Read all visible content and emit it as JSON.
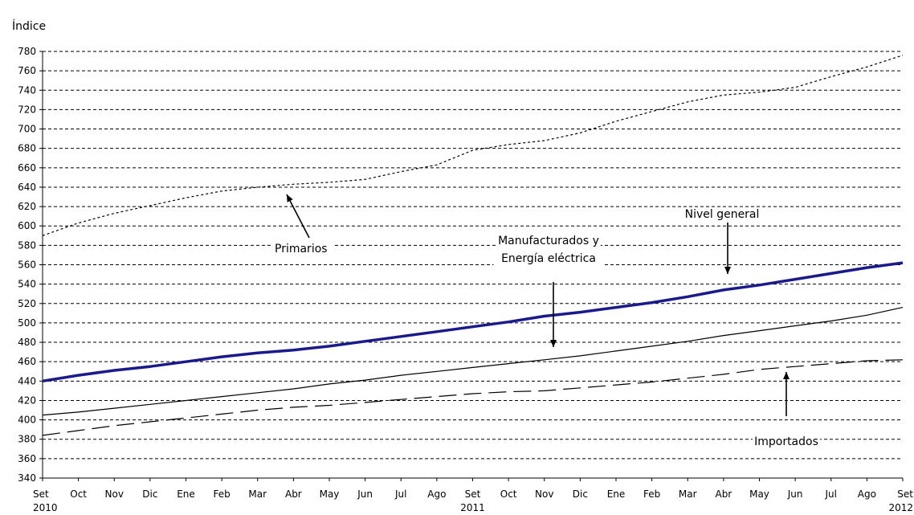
{
  "chart_data": {
    "type": "line",
    "title": "",
    "ylabel": "Índice",
    "xlabel": "",
    "ylim": [
      340,
      780
    ],
    "yticks": [
      340,
      360,
      380,
      400,
      420,
      440,
      460,
      480,
      500,
      520,
      540,
      560,
      580,
      600,
      620,
      640,
      660,
      680,
      700,
      720,
      740,
      760,
      780
    ],
    "grid": "horizontal dashed",
    "categories": [
      "Set",
      "Oct",
      "Nov",
      "Dic",
      "Ene",
      "Feb",
      "Mar",
      "Abr",
      "May",
      "Jun",
      "Jul",
      "Ago",
      "Set",
      "Oct",
      "Nov",
      "Dic",
      "Ene",
      "Feb",
      "Mar",
      "Abr",
      "May",
      "Jun",
      "Jul",
      "Ago",
      "Set"
    ],
    "year_labels": [
      {
        "index": 0,
        "label": "2010"
      },
      {
        "index": 12,
        "label": "2011"
      },
      {
        "index": 24,
        "label": "2012"
      }
    ],
    "series": [
      {
        "name": "Nivel general",
        "color": "#1a1a8c",
        "style": "solid-thick",
        "values": [
          440,
          446,
          451,
          455,
          460,
          465,
          469,
          472,
          476,
          481,
          486,
          491,
          496,
          501,
          507,
          511,
          516,
          521,
          527,
          534,
          539,
          545,
          551,
          557,
          562
        ]
      },
      {
        "name": "Manufacturados y Energía eléctrica",
        "color": "#000000",
        "style": "solid-thin",
        "values": [
          405,
          408,
          412,
          416,
          420,
          424,
          428,
          432,
          437,
          441,
          446,
          450,
          454,
          458,
          462,
          466,
          471,
          476,
          481,
          487,
          492,
          497,
          502,
          508,
          516
        ]
      },
      {
        "name": "Primarios",
        "color": "#000000",
        "style": "dotted",
        "values": [
          590,
          603,
          613,
          621,
          629,
          636,
          640,
          643,
          645,
          648,
          656,
          663,
          678,
          684,
          688,
          696,
          708,
          718,
          728,
          735,
          738,
          743,
          754,
          764,
          776
        ]
      },
      {
        "name": "Importados",
        "color": "#000000",
        "style": "long-dash",
        "values": [
          384,
          389,
          394,
          398,
          402,
          406,
          410,
          413,
          415,
          418,
          421,
          424,
          427,
          429,
          430,
          433,
          436,
          439,
          443,
          447,
          452,
          455,
          458,
          461,
          462
        ]
      }
    ],
    "annotations": [
      {
        "label_lines": [
          "Primarios"
        ],
        "series": "Primarios"
      },
      {
        "label_lines": [
          "Manufacturados y",
          "Energía eléctrica"
        ],
        "series": "Manufacturados y Energía eléctrica"
      },
      {
        "label_lines": [
          "Nivel general"
        ],
        "series": "Nivel general"
      },
      {
        "label_lines": [
          "Importados"
        ],
        "series": "Importados"
      }
    ]
  }
}
